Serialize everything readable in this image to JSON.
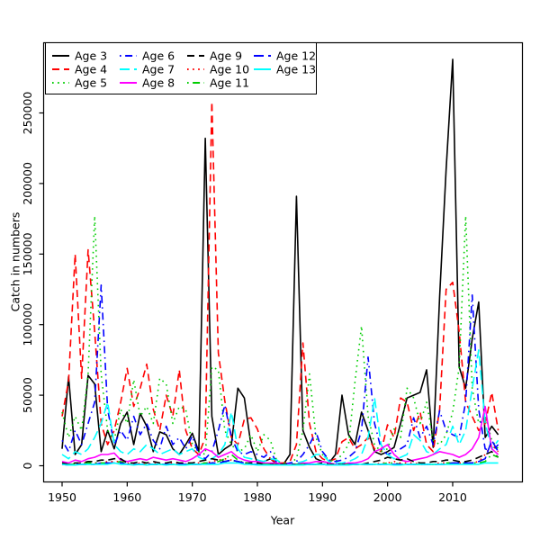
{
  "chart_data": {
    "type": "line",
    "title": "",
    "xlabel": "Year",
    "ylabel": "Catch in numbers",
    "xlim": [
      1947,
      2021
    ],
    "ylim": [
      -11500,
      299500
    ],
    "grid": false,
    "legend_position": "top-left",
    "x_ticks": [
      1950,
      1960,
      1970,
      1980,
      1990,
      2000,
      2010
    ],
    "x_tick_labels": [
      "1950",
      "1960",
      "1970",
      "1980",
      "1990",
      "2000",
      "2010"
    ],
    "y_ticks": [
      0,
      50000,
      100000,
      150000,
      200000,
      250000
    ],
    "y_tick_labels": [
      "0",
      "50000",
      "100000",
      "150000",
      "200000",
      "250000"
    ],
    "years": [
      1950,
      1951,
      1952,
      1953,
      1954,
      1955,
      1956,
      1957,
      1958,
      1959,
      1960,
      1961,
      1962,
      1963,
      1964,
      1965,
      1966,
      1967,
      1968,
      1969,
      1970,
      1971,
      1972,
      1973,
      1974,
      1975,
      1976,
      1977,
      1978,
      1979,
      1980,
      1981,
      1982,
      1983,
      1984,
      1985,
      1986,
      1987,
      1988,
      1989,
      1990,
      1991,
      1992,
      1993,
      1994,
      1995,
      1996,
      1997,
      1998,
      1999,
      2000,
      2001,
      2002,
      2003,
      2004,
      2005,
      2006,
      2007,
      2008,
      2009,
      2010,
      2011,
      2012,
      2013,
      2014,
      2015,
      2016,
      2017
    ],
    "series": [
      {
        "id": "age-3",
        "name": "Age 3",
        "color": "#000000",
        "linetype": "solid",
        "values": [
          12000,
          63000,
          8000,
          15000,
          64000,
          58000,
          10000,
          25000,
          12000,
          30000,
          38000,
          15000,
          37000,
          28000,
          10000,
          24000,
          22000,
          12000,
          8000,
          15000,
          23000,
          10000,
          232000,
          35000,
          8000,
          12000,
          15000,
          55000,
          48000,
          15000,
          2000,
          3000,
          5000,
          1000,
          1000,
          8000,
          191000,
          25000,
          13000,
          5000,
          3000,
          2000,
          8000,
          50000,
          22000,
          15000,
          38000,
          25000,
          10000,
          8000,
          10000,
          13000,
          30000,
          48000,
          50000,
          52000,
          68000,
          13000,
          120000,
          210000,
          288000,
          70000,
          55000,
          90000,
          116000,
          20000,
          28000,
          22000
        ]
      },
      {
        "id": "age-4",
        "name": "Age 4",
        "color": "#ff0000",
        "linetype": "dashed",
        "values": [
          35000,
          60000,
          150000,
          62000,
          153000,
          95000,
          30000,
          15000,
          25000,
          45000,
          69000,
          42000,
          55000,
          72000,
          40000,
          25000,
          50000,
          35000,
          68000,
          25000,
          12000,
          8000,
          20000,
          258000,
          80000,
          46000,
          20000,
          15000,
          33000,
          34000,
          26000,
          12000,
          5000,
          2000,
          2000,
          3000,
          15000,
          87000,
          30000,
          10000,
          5000,
          3000,
          5000,
          17000,
          20000,
          12000,
          15000,
          20000,
          12000,
          10000,
          29000,
          20000,
          48000,
          45000,
          25000,
          38000,
          15000,
          10000,
          40000,
          125000,
          130000,
          95000,
          45000,
          35000,
          25000,
          30000,
          52000,
          25000
        ]
      },
      {
        "id": "age-5",
        "name": "Age 5",
        "color": "#00cd00",
        "linetype": "dotted",
        "values": [
          38000,
          20000,
          35000,
          25000,
          65000,
          177000,
          65000,
          25000,
          18000,
          40000,
          30000,
          61000,
          35000,
          42000,
          30000,
          62000,
          58000,
          30000,
          42000,
          40000,
          15000,
          10000,
          8000,
          70000,
          68000,
          25000,
          15000,
          10000,
          12000,
          22000,
          10000,
          22000,
          18000,
          3000,
          2000,
          2000,
          5000,
          25000,
          65000,
          20000,
          8000,
          4000,
          3000,
          8000,
          15000,
          60000,
          99000,
          35000,
          15000,
          10000,
          12000,
          26000,
          20000,
          55000,
          48000,
          30000,
          45000,
          18000,
          15000,
          22000,
          38000,
          70000,
          177000,
          55000,
          30000,
          36000,
          18000,
          12000
        ]
      },
      {
        "id": "age-6",
        "name": "Age 6",
        "color": "#0000ff",
        "linetype": "dotdash",
        "values": [
          18000,
          10000,
          25000,
          15000,
          30000,
          45000,
          128000,
          40000,
          15000,
          25000,
          18000,
          35000,
          22000,
          30000,
          18000,
          12000,
          28000,
          15000,
          20000,
          12000,
          21000,
          8000,
          5000,
          10000,
          25000,
          43000,
          20000,
          10000,
          8000,
          10000,
          8000,
          6000,
          10000,
          2000,
          1000,
          2000,
          3000,
          8000,
          15000,
          24000,
          10000,
          4000,
          3000,
          4000,
          6000,
          10000,
          25000,
          77000,
          30000,
          12000,
          8000,
          10000,
          12000,
          15000,
          34000,
          20000,
          28000,
          15000,
          39000,
          25000,
          22000,
          20000,
          45000,
          121000,
          40000,
          12000,
          10000,
          15000
        ]
      },
      {
        "id": "age-7",
        "name": "Age 7",
        "color": "#00ffff",
        "linetype": "longdash",
        "values": [
          8000,
          5000,
          10000,
          8000,
          12000,
          20000,
          30000,
          45000,
          15000,
          10000,
          8000,
          12000,
          10000,
          15000,
          12000,
          8000,
          10000,
          12000,
          8000,
          10000,
          12000,
          6000,
          4000,
          5000,
          8000,
          15000,
          38000,
          12000,
          6000,
          5000,
          4000,
          3000,
          5000,
          4000,
          1000,
          1000,
          2000,
          3000,
          5000,
          8000,
          8000,
          3000,
          2000,
          2000,
          3000,
          5000,
          8000,
          20000,
          48000,
          15000,
          8000,
          5000,
          6000,
          8000,
          22000,
          18000,
          10000,
          8000,
          12000,
          15000,
          28000,
          15000,
          25000,
          55000,
          82000,
          30000,
          12000,
          18000
        ]
      },
      {
        "id": "age-8",
        "name": "Age 8",
        "color": "#ff00ff",
        "linetype": "solid",
        "values": [
          3000,
          2000,
          4000,
          3000,
          5000,
          6000,
          8000,
          8000,
          9000,
          4000,
          3000,
          4000,
          5000,
          4000,
          6000,
          5000,
          4000,
          5000,
          4000,
          3000,
          5000,
          8000,
          12000,
          10000,
          6000,
          8000,
          10000,
          6000,
          4000,
          3000,
          3000,
          2000,
          2000,
          2000,
          1000,
          1000,
          1000,
          2000,
          2000,
          3000,
          3000,
          2000,
          1000,
          1000,
          2000,
          2000,
          3000,
          5000,
          10000,
          12000,
          15000,
          8000,
          4000,
          3000,
          4000,
          5000,
          6000,
          8000,
          10000,
          9000,
          8000,
          6000,
          8000,
          12000,
          20000,
          42000,
          12000,
          8000
        ]
      },
      {
        "id": "age-9",
        "name": "Age 9",
        "color": "#000000",
        "linetype": "dashed",
        "values": [
          2000,
          1000,
          2000,
          2000,
          3000,
          3000,
          4000,
          4000,
          5000,
          5000,
          2000,
          2000,
          3000,
          2000,
          3000,
          2000,
          2000,
          3000,
          2000,
          2000,
          2000,
          3000,
          4000,
          5000,
          4000,
          3000,
          4000,
          3000,
          2000,
          2000,
          2000,
          1000,
          1000,
          1000,
          1000,
          1000,
          1000,
          1000,
          1000,
          1000,
          2000,
          1000,
          1000,
          1000,
          1000,
          1000,
          1000,
          2000,
          3000,
          4000,
          6000,
          5000,
          4000,
          5000,
          3000,
          2000,
          2000,
          3000,
          3000,
          4000,
          4000,
          3000,
          3000,
          4000,
          6000,
          8000,
          10000,
          6000
        ]
      },
      {
        "id": "age-10",
        "name": "Age 10",
        "color": "#ff0000",
        "linetype": "dotted",
        "values": [
          1000,
          1000,
          1000,
          2000,
          2000,
          2000,
          2000,
          3000,
          3000,
          3000,
          2000,
          1000,
          2000,
          1000,
          2000,
          1000,
          1000,
          2000,
          1000,
          1000,
          1000,
          2000,
          2000,
          3000,
          4000,
          5000,
          4000,
          3000,
          2000,
          1000,
          1000,
          1000,
          1000,
          1000,
          500,
          500,
          1000,
          1000,
          1000,
          1000,
          1000,
          1000,
          500,
          1000,
          1000,
          1000,
          1000,
          1000,
          1000,
          2000,
          2000,
          3000,
          2000,
          2000,
          2000,
          1000,
          1000,
          1000,
          2000,
          2000,
          2000,
          2000,
          2000,
          2000,
          3000,
          8000,
          15000,
          10000
        ]
      },
      {
        "id": "age-11",
        "name": "Age 11",
        "color": "#00cd00",
        "linetype": "dotdash",
        "values": [
          1000,
          1000,
          1000,
          1000,
          2000,
          2000,
          2000,
          2000,
          2000,
          3000,
          1000,
          1000,
          1000,
          1000,
          1000,
          1000,
          1000,
          1000,
          1000,
          1000,
          1000,
          1000,
          2000,
          2000,
          3000,
          5000,
          8000,
          4000,
          2000,
          1000,
          1000,
          1000,
          1000,
          500,
          500,
          500,
          1000,
          1000,
          1000,
          1000,
          1000,
          500,
          500,
          1000,
          1000,
          1000,
          1000,
          1000,
          1000,
          1000,
          2000,
          2000,
          1000,
          1000,
          1000,
          1000,
          1000,
          1000,
          1000,
          2000,
          2000,
          2000,
          2000,
          2000,
          2000,
          3000,
          8000,
          6000
        ]
      },
      {
        "id": "age-12",
        "name": "Age 12",
        "color": "#0000ff",
        "linetype": "longdash",
        "values": [
          1000,
          500,
          1000,
          1000,
          1000,
          1000,
          2000,
          2000,
          2000,
          2000,
          1000,
          1000,
          1000,
          1000,
          1000,
          1000,
          1000,
          1000,
          1000,
          1000,
          1000,
          1000,
          1000,
          2000,
          2000,
          3000,
          4000,
          3000,
          2000,
          1000,
          1000,
          500,
          500,
          500,
          500,
          500,
          500,
          1000,
          1000,
          1000,
          1000,
          500,
          500,
          500,
          1000,
          1000,
          1000,
          1000,
          1000,
          1000,
          1000,
          1000,
          1000,
          1000,
          1000,
          1000,
          1000,
          1000,
          1000,
          1000,
          2000,
          2000,
          2000,
          2000,
          3000,
          5000,
          18000,
          10000
        ]
      },
      {
        "id": "age-13",
        "name": "Age 13",
        "color": "#00ffff",
        "linetype": "solid",
        "values": [
          1000,
          500,
          500,
          1000,
          1000,
          1000,
          1000,
          1000,
          2000,
          1000,
          1000,
          500,
          1000,
          500,
          1000,
          1000,
          500,
          1000,
          500,
          500,
          1000,
          1000,
          1000,
          1000,
          1000,
          2000,
          2000,
          2000,
          1000,
          1000,
          500,
          500,
          500,
          500,
          500,
          500,
          500,
          500,
          1000,
          1000,
          1000,
          500,
          500,
          500,
          500,
          1000,
          1000,
          1000,
          1000,
          1000,
          1000,
          500,
          500,
          1000,
          1000,
          1000,
          1000,
          1000,
          1000,
          1000,
          1000,
          1000,
          1000,
          1000,
          1000,
          2000,
          2000,
          2000
        ]
      }
    ]
  }
}
